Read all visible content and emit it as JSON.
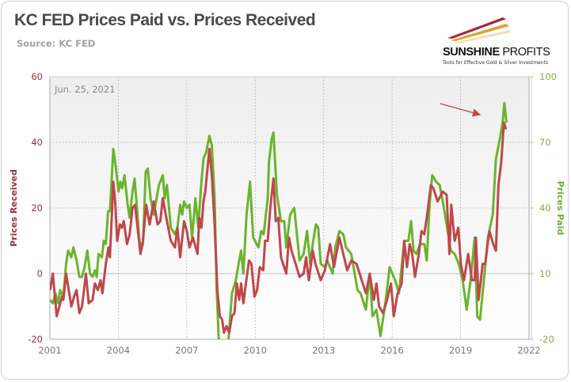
{
  "header": {
    "title": "KC FED Prices Paid vs. Prices Received",
    "source": "Source: KC FED"
  },
  "logo": {
    "name_bold": "SUNSHINE",
    "name_light": " PROFITS",
    "tagline": "Tools for Effective Gold & Silver Investments"
  },
  "colors": {
    "prices_received": "#c0474a",
    "prices_paid": "#6ab42d",
    "left_axis": "#a0303a",
    "right_axis": "#7fb040"
  },
  "chart_data": {
    "type": "line",
    "date_label": "Jun. 25, 2021",
    "xlim": [
      2001,
      2022
    ],
    "x_ticks": [
      "2001",
      "2004",
      "2007",
      "2010",
      "2013",
      "2016",
      "2019",
      "2022"
    ],
    "left_axis": {
      "label": "Prices Received",
      "ylim": [
        -20,
        60
      ],
      "ticks": [
        "-20",
        "0",
        "20",
        "40",
        "60"
      ]
    },
    "right_axis": {
      "label": "Prices Paid",
      "ylim": [
        -20,
        100
      ],
      "ticks": [
        "-20",
        "10",
        "40",
        "70",
        "100"
      ]
    },
    "grid": true,
    "annotation": "arrow pointing to 2021 peak",
    "series": [
      {
        "name": "Prices Received",
        "axis": "left",
        "points": [
          [
            2001.01,
            -5
          ],
          [
            2001.13,
            0
          ],
          [
            2001.3,
            -13
          ],
          [
            2001.53,
            -7
          ],
          [
            2001.59,
            -8
          ],
          [
            2001.71,
            0
          ],
          [
            2001.94,
            -10
          ],
          [
            2002.06,
            -7
          ],
          [
            2002.17,
            -5
          ],
          [
            2002.29,
            -12
          ],
          [
            2002.41,
            -10
          ],
          [
            2002.58,
            0
          ],
          [
            2002.7,
            -9
          ],
          [
            2002.87,
            -8
          ],
          [
            2002.97,
            -3
          ],
          [
            2003.1,
            -5
          ],
          [
            2003.22,
            -2
          ],
          [
            2003.3,
            -6
          ],
          [
            2003.45,
            3
          ],
          [
            2003.57,
            8
          ],
          [
            2003.63,
            5
          ],
          [
            2003.78,
            28
          ],
          [
            2003.86,
            22
          ],
          [
            2003.95,
            10
          ],
          [
            2004.07,
            15
          ],
          [
            2004.15,
            14
          ],
          [
            2004.24,
            16
          ],
          [
            2004.38,
            9
          ],
          [
            2004.5,
            12
          ],
          [
            2004.62,
            20
          ],
          [
            2004.73,
            21
          ],
          [
            2004.97,
            6
          ],
          [
            2005.08,
            10
          ],
          [
            2005.22,
            21
          ],
          [
            2005.37,
            15
          ],
          [
            2005.55,
            22
          ],
          [
            2005.72,
            15
          ],
          [
            2005.84,
            16
          ],
          [
            2005.95,
            23
          ],
          [
            2006.13,
            16
          ],
          [
            2006.3,
            10
          ],
          [
            2006.48,
            8
          ],
          [
            2006.59,
            14
          ],
          [
            2006.71,
            5
          ],
          [
            2006.88,
            16
          ],
          [
            2007.0,
            13
          ],
          [
            2007.12,
            8
          ],
          [
            2007.27,
            11
          ],
          [
            2007.47,
            6
          ],
          [
            2007.55,
            17
          ],
          [
            2007.64,
            14
          ],
          [
            2007.73,
            22
          ],
          [
            2007.81,
            25
          ],
          [
            2007.99,
            38
          ],
          [
            2008.1,
            30
          ],
          [
            2008.22,
            15
          ],
          [
            2008.34,
            -5
          ],
          [
            2008.45,
            -13
          ],
          [
            2008.55,
            -14
          ],
          [
            2008.63,
            -18
          ],
          [
            2008.74,
            -16
          ],
          [
            2008.86,
            -18
          ],
          [
            2008.98,
            -13
          ],
          [
            2009.09,
            -12
          ],
          [
            2009.19,
            -3
          ],
          [
            2009.3,
            -8
          ],
          [
            2009.38,
            -3
          ],
          [
            2009.48,
            -9
          ],
          [
            2009.59,
            -3
          ],
          [
            2009.73,
            4
          ],
          [
            2009.83,
            3
          ],
          [
            2009.97,
            -7
          ],
          [
            2010.08,
            -5
          ],
          [
            2010.2,
            2
          ],
          [
            2010.35,
            1
          ],
          [
            2010.43,
            10
          ],
          [
            2010.55,
            10
          ],
          [
            2010.66,
            20
          ],
          [
            2010.8,
            29
          ],
          [
            2010.9,
            16
          ],
          [
            2011.01,
            17
          ],
          [
            2011.13,
            5
          ],
          [
            2011.36,
            0
          ],
          [
            2011.48,
            11
          ],
          [
            2011.59,
            7
          ],
          [
            2011.77,
            3
          ],
          [
            2011.94,
            -1
          ],
          [
            2012.12,
            0
          ],
          [
            2012.23,
            5
          ],
          [
            2012.35,
            -2
          ],
          [
            2012.52,
            7
          ],
          [
            2012.64,
            3
          ],
          [
            2012.87,
            -2
          ],
          [
            2013.05,
            1
          ],
          [
            2013.28,
            9
          ],
          [
            2013.45,
            2
          ],
          [
            2013.69,
            11
          ],
          [
            2013.86,
            6
          ],
          [
            2014.03,
            1
          ],
          [
            2014.21,
            4
          ],
          [
            2014.44,
            3
          ],
          [
            2014.62,
            -1
          ],
          [
            2014.85,
            -6
          ],
          [
            2015.02,
            0
          ],
          [
            2015.2,
            -8
          ],
          [
            2015.31,
            -3
          ],
          [
            2015.43,
            -10
          ],
          [
            2015.6,
            -12
          ],
          [
            2015.78,
            -8
          ],
          [
            2015.95,
            -3
          ],
          [
            2016.07,
            -13
          ],
          [
            2016.24,
            -6
          ],
          [
            2016.42,
            -3
          ],
          [
            2016.53,
            10
          ],
          [
            2016.65,
            2
          ],
          [
            2016.77,
            9
          ],
          [
            2016.88,
            6
          ],
          [
            2017.0,
            -1
          ],
          [
            2017.17,
            6
          ],
          [
            2017.29,
            13
          ],
          [
            2017.41,
            12
          ],
          [
            2017.52,
            17
          ],
          [
            2017.7,
            27
          ],
          [
            2017.81,
            26
          ],
          [
            2017.99,
            22
          ],
          [
            2018.22,
            25
          ],
          [
            2018.39,
            24
          ],
          [
            2018.51,
            6
          ],
          [
            2018.59,
            21
          ],
          [
            2018.74,
            10
          ],
          [
            2018.9,
            14
          ],
          [
            2019.01,
            3
          ],
          [
            2019.15,
            -2
          ],
          [
            2019.33,
            6
          ],
          [
            2019.5,
            -2
          ],
          [
            2019.62,
            -2
          ],
          [
            2019.67,
            11
          ],
          [
            2019.79,
            -8
          ],
          [
            2019.97,
            3
          ],
          [
            2020.08,
            3
          ],
          [
            2020.26,
            13
          ],
          [
            2020.43,
            9
          ],
          [
            2020.55,
            7
          ],
          [
            2020.66,
            27
          ],
          [
            2020.78,
            34
          ],
          [
            2020.9,
            46
          ],
          [
            2020.99,
            44
          ]
        ]
      },
      {
        "name": "Prices Paid",
        "axis": "right",
        "points": [
          [
            2001.01,
            -2
          ],
          [
            2001.13,
            -3.5
          ],
          [
            2001.24,
            1
          ],
          [
            2001.36,
            -3.5
          ],
          [
            2001.45,
            2.5
          ],
          [
            2001.59,
            -0.5
          ],
          [
            2001.71,
            14.5
          ],
          [
            2001.8,
            20.5
          ],
          [
            2001.94,
            17.5
          ],
          [
            2002.03,
            22
          ],
          [
            2002.17,
            16
          ],
          [
            2002.29,
            8.5
          ],
          [
            2002.41,
            8.5
          ],
          [
            2002.52,
            13
          ],
          [
            2002.64,
            20.5
          ],
          [
            2002.76,
            10
          ],
          [
            2002.87,
            8.5
          ],
          [
            2002.97,
            11.5
          ],
          [
            2003.05,
            8.5
          ],
          [
            2003.13,
            19
          ],
          [
            2003.28,
            17.5
          ],
          [
            2003.36,
            25
          ],
          [
            2003.45,
            23.5
          ],
          [
            2003.55,
            38.5
          ],
          [
            2003.63,
            38.5
          ],
          [
            2003.78,
            67
          ],
          [
            2003.9,
            58
          ],
          [
            2004.01,
            47.5
          ],
          [
            2004.09,
            52
          ],
          [
            2004.17,
            49
          ],
          [
            2004.27,
            55
          ],
          [
            2004.41,
            41.5
          ],
          [
            2004.5,
            35.5
          ],
          [
            2004.62,
            47.5
          ],
          [
            2004.71,
            53.5
          ],
          [
            2004.83,
            38.5
          ],
          [
            2004.91,
            26.5
          ],
          [
            2004.99,
            20.5
          ],
          [
            2005.08,
            23.5
          ],
          [
            2005.2,
            56.5
          ],
          [
            2005.29,
            58
          ],
          [
            2005.41,
            44.5
          ],
          [
            2005.55,
            37
          ],
          [
            2005.78,
            50.5
          ],
          [
            2005.95,
            55
          ],
          [
            2006.03,
            44.5
          ],
          [
            2006.13,
            50.5
          ],
          [
            2006.3,
            31
          ],
          [
            2006.48,
            28
          ],
          [
            2006.59,
            31
          ],
          [
            2006.71,
            41.5
          ],
          [
            2006.8,
            37
          ],
          [
            2006.88,
            43
          ],
          [
            2007.0,
            40
          ],
          [
            2007.12,
            41.5
          ],
          [
            2007.23,
            26.5
          ],
          [
            2007.38,
            44.5
          ],
          [
            2007.5,
            31
          ],
          [
            2007.62,
            49
          ],
          [
            2007.73,
            62.5
          ],
          [
            2007.85,
            65.5
          ],
          [
            2007.99,
            73
          ],
          [
            2008.1,
            68.5
          ],
          [
            2008.22,
            44.5
          ],
          [
            2008.31,
            2.5
          ],
          [
            2008.43,
            -27.5
          ],
          [
            2008.69,
            -27.5
          ],
          [
            2008.83,
            -20
          ],
          [
            2008.98,
            1
          ],
          [
            2009.15,
            7
          ],
          [
            2009.27,
            14.5
          ],
          [
            2009.38,
            20.5
          ],
          [
            2009.48,
            10
          ],
          [
            2009.62,
            37
          ],
          [
            2009.77,
            52
          ],
          [
            2009.91,
            26.5
          ],
          [
            2010.14,
            22
          ],
          [
            2010.26,
            29.5
          ],
          [
            2010.37,
            28
          ],
          [
            2010.55,
            44.5
          ],
          [
            2010.6,
            61
          ],
          [
            2010.72,
            71.5
          ],
          [
            2010.8,
            74.5
          ],
          [
            2010.95,
            46
          ],
          [
            2011.13,
            34
          ],
          [
            2011.27,
            34
          ],
          [
            2011.36,
            22
          ],
          [
            2011.53,
            37
          ],
          [
            2011.71,
            40
          ],
          [
            2011.94,
            16
          ],
          [
            2012.12,
            19
          ],
          [
            2012.27,
            29.5
          ],
          [
            2012.41,
            14.5
          ],
          [
            2012.52,
            23.5
          ],
          [
            2012.66,
            32.5
          ],
          [
            2012.76,
            31
          ],
          [
            2012.87,
            14.5
          ],
          [
            2013.05,
            13
          ],
          [
            2013.16,
            16
          ],
          [
            2013.39,
            10
          ],
          [
            2013.51,
            22
          ],
          [
            2013.69,
            29.5
          ],
          [
            2013.86,
            28
          ],
          [
            2013.98,
            22
          ],
          [
            2014.21,
            19
          ],
          [
            2014.48,
            2.5
          ],
          [
            2014.62,
            1
          ],
          [
            2014.85,
            -6.5
          ],
          [
            2015.02,
            10
          ],
          [
            2015.14,
            -9.5
          ],
          [
            2015.31,
            -6.5
          ],
          [
            2015.49,
            -18.5
          ],
          [
            2015.72,
            -2
          ],
          [
            2015.89,
            13
          ],
          [
            2016.13,
            7
          ],
          [
            2016.3,
            1
          ],
          [
            2016.53,
            25
          ],
          [
            2016.71,
            25
          ],
          [
            2016.83,
            34
          ],
          [
            2016.94,
            20.5
          ],
          [
            2017.06,
            19
          ],
          [
            2017.23,
            23.5
          ],
          [
            2017.41,
            23.5
          ],
          [
            2017.52,
            16
          ],
          [
            2017.64,
            41.5
          ],
          [
            2017.76,
            55
          ],
          [
            2017.93,
            52
          ],
          [
            2018.08,
            50.5
          ],
          [
            2018.22,
            43
          ],
          [
            2018.39,
            32.5
          ],
          [
            2018.57,
            20.5
          ],
          [
            2018.74,
            19
          ],
          [
            2018.92,
            14.5
          ],
          [
            2019.09,
            7
          ],
          [
            2019.27,
            -6.5
          ],
          [
            2019.44,
            7
          ],
          [
            2019.62,
            26.5
          ],
          [
            2019.73,
            -9.5
          ],
          [
            2019.85,
            -11
          ],
          [
            2020.02,
            7
          ],
          [
            2020.2,
            26.5
          ],
          [
            2020.41,
            37
          ],
          [
            2020.55,
            62.5
          ],
          [
            2020.72,
            71.5
          ],
          [
            2020.84,
            79
          ],
          [
            2020.92,
            88
          ],
          [
            2021.01,
            79
          ]
        ]
      }
    ]
  }
}
